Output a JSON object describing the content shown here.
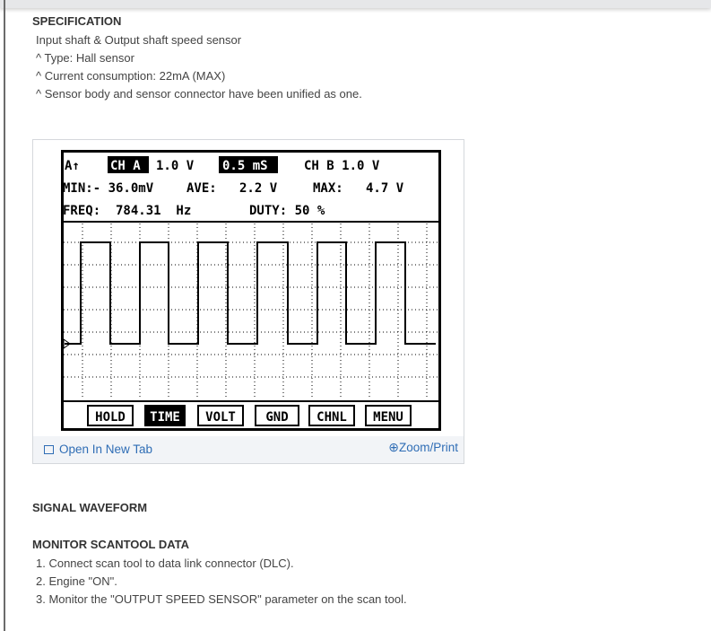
{
  "specification": {
    "heading": "SPECIFICATION",
    "lines": [
      "Input shaft & Output shaft speed sensor",
      "^  Type: Hall sensor",
      "^  Current consumption: 22mA (MAX)",
      "^  Sensor body and sensor connector have been unified as one."
    ]
  },
  "figure": {
    "scope": {
      "row1": {
        "trigger": "A↑",
        "ch_a": "CH A",
        "ch_a_scale": "1.0 V",
        "timebase": "0.5 mS",
        "ch_b": "CH B 1.0 V"
      },
      "row2": {
        "min": "MIN:- 36.0mV",
        "ave": "AVE:   2.2 V",
        "max": "MAX:   4.7 V"
      },
      "row3": {
        "freq": "FREQ:  784.31  Hz",
        "duty": "DUTY: 50 %"
      },
      "buttons": [
        "HOLD",
        "TIME",
        "VOLT",
        "GND",
        "CHNL",
        "MENU"
      ],
      "active_button": "TIME"
    },
    "open_new_tab": "Open In New Tab",
    "zoom_print": "Zoom/Print",
    "link_color": "#2f6db5"
  },
  "signal_waveform": {
    "heading": "SIGNAL WAVEFORM"
  },
  "monitor": {
    "heading": "MONITOR SCANTOOL DATA",
    "steps": [
      "1. Connect scan tool to data link connector (DLC).",
      "2. Engine \"ON\".",
      "3. Monitor the \"OUTPUT SPEED SENSOR\" parameter on the scan tool."
    ]
  }
}
